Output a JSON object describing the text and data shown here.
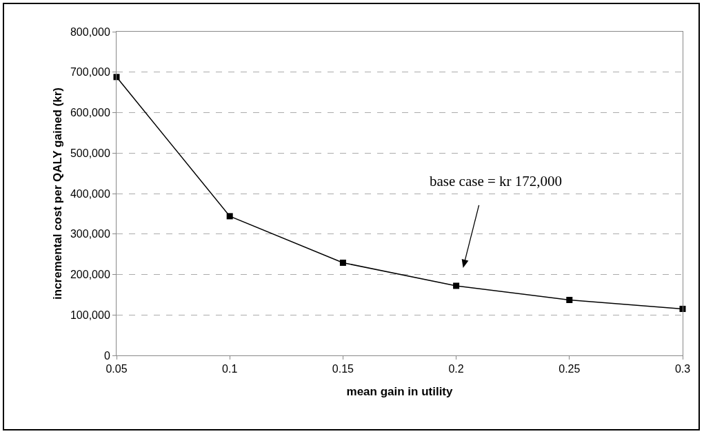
{
  "chart_data": {
    "type": "line",
    "xlabel": "mean gain in utility",
    "ylabel": "incremental cost per QALY gained (kr)",
    "x": [
      0.05,
      0.1,
      0.15,
      0.2,
      0.25,
      0.3
    ],
    "series": [
      {
        "color": "#000000",
        "values": [
          688000,
          344000,
          229000,
          172000,
          137000,
          115000
        ]
      }
    ],
    "xlim": [
      0.05,
      0.3
    ],
    "xticks": [
      0.05,
      0.1,
      0.15,
      0.2,
      0.25,
      0.3
    ],
    "ylim": [
      0,
      800000
    ],
    "yticks": [
      {
        "value": 0,
        "label": "0"
      },
      {
        "value": 100000,
        "label": "100,000"
      },
      {
        "value": 200000,
        "label": "200,000"
      },
      {
        "value": 300000,
        "label": "300,000"
      },
      {
        "value": 400000,
        "label": "400,000"
      },
      {
        "value": 500000,
        "label": "500,000"
      },
      {
        "value": 600000,
        "label": "600,000"
      },
      {
        "value": 700000,
        "label": "700,000"
      },
      {
        "value": 800000,
        "label": "800,000"
      }
    ],
    "grid": "y",
    "marker": "square",
    "line_style": "solid",
    "annotations": [
      "base case = kr 172,000"
    ]
  }
}
